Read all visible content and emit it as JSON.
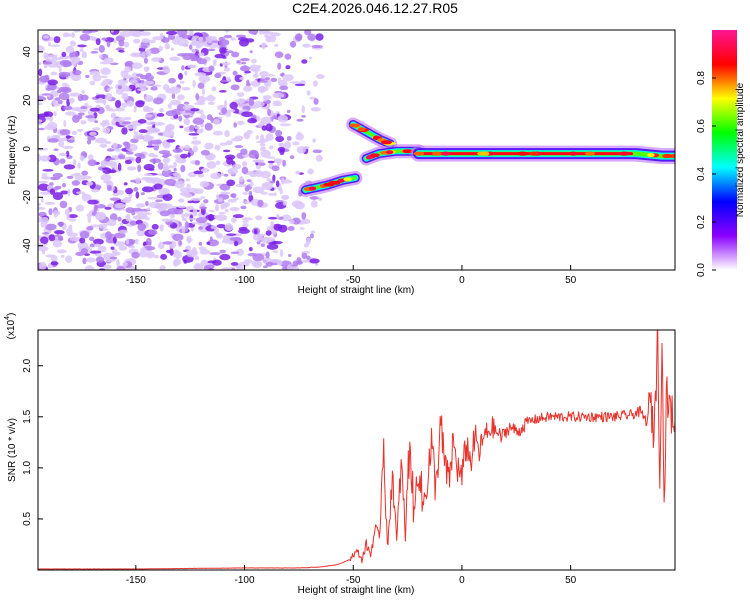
{
  "figure": {
    "title": "C2E4.2026.046.12.27.R05"
  },
  "chart_data": [
    {
      "type": "heatmap",
      "name": "spectrogram",
      "xlabel": "Height of straight line (km)",
      "ylabel": "Frequency (Hz)",
      "xlim": [
        -195,
        98
      ],
      "ylim": [
        -50,
        49
      ],
      "x_ticks": [
        "-150",
        "-100",
        "-50",
        "0",
        "50"
      ],
      "x_tick_values": [
        -150,
        -100,
        -50,
        0,
        50
      ],
      "y_ticks": [
        "-40",
        "-20",
        "0",
        "20",
        "40"
      ],
      "y_tick_values": [
        -40,
        -20,
        0,
        20,
        40
      ],
      "noise_region_km": [
        -195,
        -65
      ],
      "features": [
        {
          "label": "lower-branch",
          "points": [
            [
              -72,
              -17
            ],
            [
              -62,
              -15
            ],
            [
              -55,
              -13
            ],
            [
              -49,
              -12
            ]
          ]
        },
        {
          "label": "upper-branch",
          "points": [
            [
              -50,
              10
            ],
            [
              -44,
              7
            ],
            [
              -38,
              4
            ],
            [
              -33,
              2
            ]
          ]
        },
        {
          "label": "merge-branch",
          "points": [
            [
              -44,
              -4
            ],
            [
              -38,
              -2
            ],
            [
              -30,
              -1
            ],
            [
              -20,
              -1
            ]
          ]
        },
        {
          "label": "main-ridge",
          "points": [
            [
              -20,
              -2
            ],
            [
              0,
              -2
            ],
            [
              20,
              -2
            ],
            [
              50,
              -2
            ],
            [
              80,
              -2
            ],
            [
              92,
              -3
            ],
            [
              98,
              -3
            ]
          ]
        }
      ],
      "colorbar": {
        "label": "Normalized spectral amplitude",
        "range": [
          0,
          1
        ],
        "ticks": [
          "0.0",
          "0.2",
          "0.4",
          "0.6",
          "0.8"
        ],
        "tick_values": [
          0.0,
          0.2,
          0.4,
          0.6,
          0.8
        ],
        "stops": [
          "#ffffff",
          "#8b00ff",
          "#0000ff",
          "#00ffff",
          "#00ff00",
          "#ffff00",
          "#ff0000",
          "#ff1493"
        ]
      }
    },
    {
      "type": "line",
      "name": "snr",
      "xlabel": "Height of straight line (km)",
      "ylabel": "SNR (10 * v/v)",
      "scale_label": "(x10",
      "scale_exponent": "4",
      "xlim": [
        -195,
        98
      ],
      "ylim": [
        0,
        2.35
      ],
      "x_ticks": [
        "-150",
        "-100",
        "-50",
        "0",
        "50"
      ],
      "x_tick_values": [
        -150,
        -100,
        -50,
        0,
        50
      ],
      "y_ticks": [
        "0.5",
        "1.0",
        "1.5",
        "2.0"
      ],
      "y_tick_values": [
        0.5,
        1.0,
        1.5,
        2.0
      ],
      "color": "#e8322b",
      "series": [
        {
          "name": "SNR",
          "x": [
            -195,
            -150,
            -100,
            -75,
            -65,
            -58,
            -55,
            -52,
            -50,
            -48,
            -46,
            -44,
            -42,
            -40,
            -38,
            -36,
            -35,
            -34,
            -32,
            -30,
            -28,
            -26,
            -24,
            -22,
            -20,
            -18,
            -16,
            -14,
            -12,
            -10,
            -8,
            -6,
            -4,
            -2,
            0,
            2,
            4,
            6,
            8,
            10,
            14,
            18,
            22,
            26,
            30,
            35,
            40,
            50,
            60,
            70,
            78,
            82,
            85,
            87,
            88,
            89,
            90,
            91,
            92,
            93,
            94,
            96,
            98
          ],
          "y": [
            0.01,
            0.01,
            0.02,
            0.02,
            0.03,
            0.05,
            0.07,
            0.1,
            0.15,
            0.18,
            0.1,
            0.25,
            0.15,
            0.4,
            0.3,
            1.3,
            0.6,
            0.2,
            1.0,
            0.25,
            1.05,
            0.35,
            1.3,
            0.5,
            1.1,
            0.6,
            0.9,
            1.2,
            0.8,
            1.4,
            1.05,
            0.85,
            1.25,
            1.0,
            0.9,
            1.25,
            1.05,
            1.3,
            1.15,
            1.3,
            1.4,
            1.3,
            1.4,
            1.35,
            1.45,
            1.48,
            1.5,
            1.5,
            1.5,
            1.5,
            1.52,
            1.55,
            1.45,
            1.65,
            1.3,
            1.7,
            2.3,
            0.9,
            2.35,
            0.6,
            1.7,
            1.55,
            1.45
          ]
        }
      ]
    }
  ]
}
